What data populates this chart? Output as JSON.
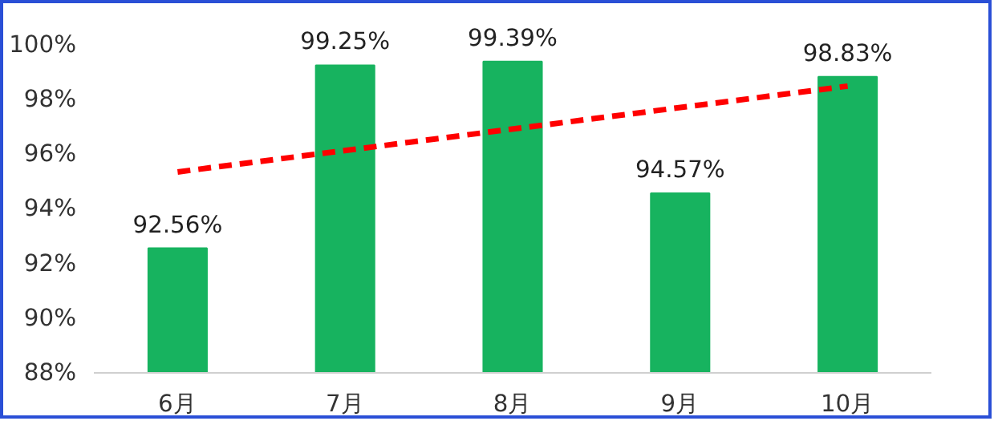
{
  "chart_data": {
    "type": "bar",
    "categories": [
      "6月",
      "7月",
      "8月",
      "9月",
      "10月"
    ],
    "series": [
      {
        "color": "#17b35f",
        "values": [
          92.56,
          99.25,
          99.39,
          94.57,
          98.83
        ],
        "value_labels": [
          "92.56%",
          "99.25%",
          "99.39%",
          "94.57%",
          "98.83%"
        ]
      },
      {
        "type": "line",
        "color": "#ff0000",
        "line_style": "dashed",
        "x": [
          "6月",
          "10月"
        ],
        "values": [
          95.35,
          98.49
        ]
      }
    ],
    "ylim": [
      88,
      100
    ],
    "yticks": [
      {
        "value": 88,
        "label": "88%"
      },
      {
        "value": 90,
        "label": "90%"
      },
      {
        "value": 92,
        "label": "92%"
      },
      {
        "value": 94,
        "label": "94%"
      },
      {
        "value": 96,
        "label": "96%"
      },
      {
        "value": 98,
        "label": "98%"
      },
      {
        "value": 100,
        "label": "100%"
      }
    ],
    "grid": false
  }
}
